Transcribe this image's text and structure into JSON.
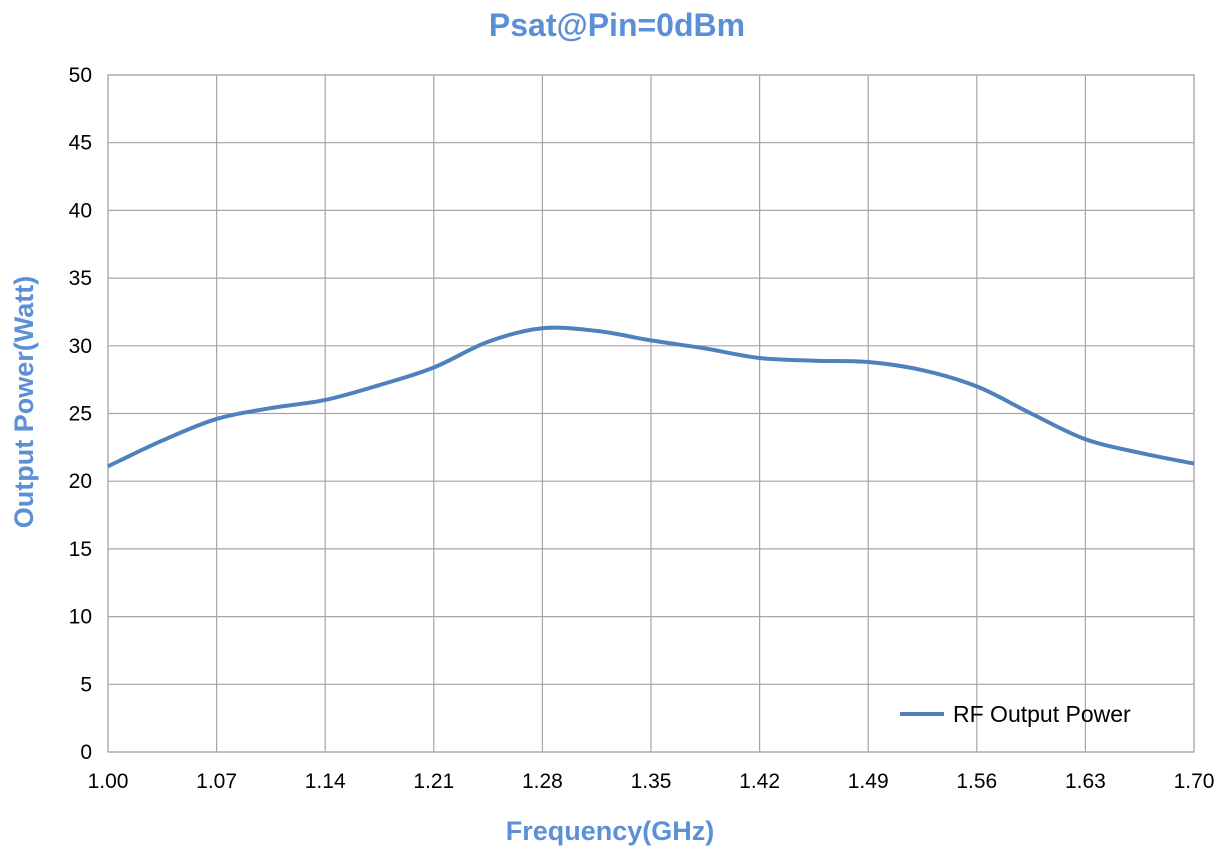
{
  "chart_data": {
    "type": "line",
    "title": "Psat@Pin=0dBm",
    "xlabel": "Frequency(GHz)",
    "ylabel": "Output Power(Watt)",
    "xlim": [
      1.0,
      1.7
    ],
    "ylim": [
      0,
      50
    ],
    "x_ticks": [
      "1.00",
      "1.07",
      "1.14",
      "1.21",
      "1.28",
      "1.35",
      "1.42",
      "1.49",
      "1.56",
      "1.63",
      "1.70"
    ],
    "y_ticks": [
      "0",
      "5",
      "10",
      "15",
      "20",
      "25",
      "30",
      "35",
      "40",
      "45",
      "50"
    ],
    "grid": true,
    "legend_position": "bottom-right",
    "series": [
      {
        "name": "RF Output Power",
        "color": "#4f81bd",
        "x": [
          1.0,
          1.035,
          1.07,
          1.105,
          1.14,
          1.175,
          1.21,
          1.245,
          1.28,
          1.315,
          1.35,
          1.385,
          1.42,
          1.455,
          1.49,
          1.525,
          1.56,
          1.595,
          1.63,
          1.665,
          1.7
        ],
        "y": [
          21.1,
          23.0,
          24.6,
          25.4,
          26.0,
          27.1,
          28.4,
          30.3,
          31.3,
          31.1,
          30.4,
          29.8,
          29.1,
          28.9,
          28.8,
          28.2,
          27.0,
          25.0,
          23.1,
          22.1,
          21.3
        ]
      }
    ]
  }
}
